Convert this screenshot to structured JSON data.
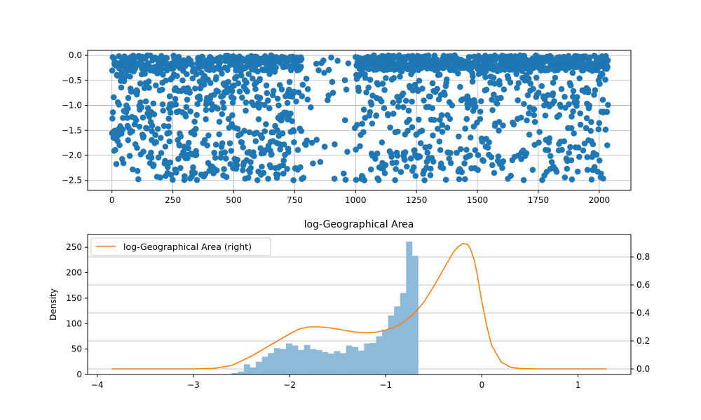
{
  "colors": {
    "scatter": "#1f77b4",
    "hist": "#8ebad9",
    "kde": "#ff7f0e",
    "grid": "#b0b0b0",
    "axis": "#000000"
  },
  "chart_data": [
    {
      "type": "scatter",
      "title": "",
      "xlabel": "",
      "ylabel": "",
      "xlim": [
        -100,
        2130
      ],
      "ylim": [
        -2.7,
        0.1
      ],
      "xticks": [
        0,
        250,
        500,
        750,
        1000,
        1250,
        1500,
        1750,
        2000
      ],
      "yticks": [
        0.0,
        -0.5,
        -1.0,
        -1.5,
        -2.0,
        -2.5
      ],
      "grid": true,
      "n_points": 2037,
      "gap_range": [
        780,
        1000
      ],
      "note_density": [
        {
          "value_band": "-0.3 to 0.0",
          "share": 0.42
        },
        {
          "value_band": "-1.0 to -0.3",
          "share": 0.22
        },
        {
          "value_band": "-1.8 to -1.0",
          "share": 0.18
        },
        {
          "value_band": "-2.5 to -1.8",
          "share": 0.18
        }
      ]
    },
    {
      "type": "bar",
      "title": "log-Geographical Area",
      "xlabel": "",
      "ylabel": "Density",
      "xlim": [
        -4.1,
        1.55
      ],
      "ylim": [
        0,
        275
      ],
      "xticks": [
        -4,
        -3,
        -2,
        -1,
        0,
        1
      ],
      "xtick_labels": [
        "−4",
        "−3",
        "−2",
        "−1",
        "0",
        "1"
      ],
      "yticks": [
        0,
        50,
        100,
        150,
        200,
        250
      ],
      "bin_edges_start": -2.6,
      "bin_width": 0.0625,
      "counts": [
        3,
        6,
        20,
        14,
        25,
        35,
        42,
        52,
        50,
        61,
        57,
        48,
        58,
        50,
        48,
        44,
        41,
        46,
        42,
        57,
        54,
        47,
        61,
        62,
        75,
        88,
        116,
        134,
        160,
        261,
        233
      ],
      "secondary_axis": {
        "series_name": "log-Geographical Area (right)",
        "type": "line",
        "ylim": [
          -0.04,
          0.96
        ],
        "yticks": [
          0.0,
          0.2,
          0.4,
          0.6,
          0.8
        ],
        "grid": true,
        "x": [
          -3.85,
          -3.0,
          -2.8,
          -2.6,
          -2.4,
          -2.2,
          -2.0,
          -1.9,
          -1.8,
          -1.7,
          -1.6,
          -1.5,
          -1.4,
          -1.3,
          -1.2,
          -1.1,
          -1.0,
          -0.9,
          -0.8,
          -0.7,
          -0.6,
          -0.5,
          -0.4,
          -0.3,
          -0.25,
          -0.2,
          -0.15,
          -0.12,
          -0.08,
          -0.05,
          0.0,
          0.05,
          0.1,
          0.2,
          0.3,
          0.4,
          0.6,
          1.0,
          1.3
        ],
        "y": [
          0.0,
          0.0,
          0.003,
          0.025,
          0.09,
          0.17,
          0.25,
          0.285,
          0.3,
          0.3,
          0.295,
          0.285,
          0.272,
          0.262,
          0.258,
          0.262,
          0.278,
          0.3,
          0.34,
          0.4,
          0.48,
          0.59,
          0.71,
          0.83,
          0.87,
          0.895,
          0.89,
          0.86,
          0.78,
          0.68,
          0.48,
          0.31,
          0.17,
          0.05,
          0.012,
          0.002,
          0.0,
          0.0,
          0.0
        ]
      },
      "legend": {
        "location": "upper left",
        "entries": [
          "log-Geographical Area (right)"
        ]
      }
    }
  ]
}
